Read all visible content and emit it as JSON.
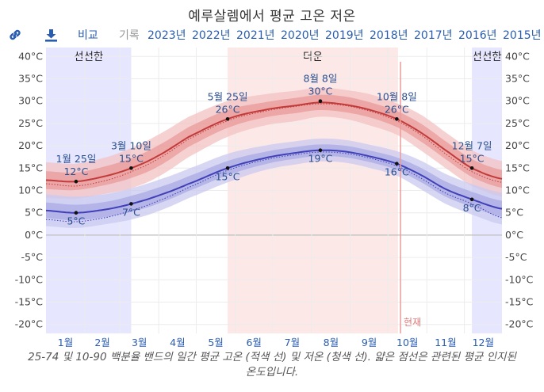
{
  "title": "예루살렘에서 평균 고온 저온",
  "toolbar": {
    "link_icon": "link-icon",
    "download_icon": "download-icon",
    "compare_label": "비교",
    "history_label": "기록",
    "years": [
      "2023년",
      "2022년",
      "2021년",
      "2020년",
      "2019년",
      "2018년",
      "2017년",
      "2016년",
      "2015년"
    ],
    "link_color": "#2a5db0"
  },
  "caption": "25-74 및 10-90 백분율 밴드의 일간 평균 고온 (적색 선) 및 저온 (청색 선). 얇은 점선은 관련된 평균 인지된 온도입니다.",
  "chart_data": {
    "type": "line",
    "title": "예루살렘에서 평균 고온 저온",
    "x_unit": "day_of_year",
    "xlim": [
      1,
      365
    ],
    "ylim": [
      -22,
      42
    ],
    "y_ticks": [
      -20,
      -15,
      -10,
      -5,
      0,
      5,
      10,
      15,
      20,
      25,
      30,
      35,
      40
    ],
    "y_tick_labels": [
      "-20°C",
      "-15°C",
      "-10°C",
      "-5°C",
      "0°C",
      "5°C",
      "10°C",
      "15°C",
      "20°C",
      "25°C",
      "30°C",
      "35°C",
      "40°C"
    ],
    "months": [
      "1월",
      "2월",
      "3월",
      "4월",
      "5월",
      "6월",
      "7월",
      "8월",
      "9월",
      "10월",
      "11월",
      "12월"
    ],
    "seasons": [
      {
        "label": "선선한",
        "start_day": 1,
        "end_day": 69,
        "color": "#e6e6ff"
      },
      {
        "label": "더운",
        "start_day": 146,
        "end_day": 282,
        "color": "#fde8e8"
      },
      {
        "label": "선선한",
        "start_day": 341,
        "end_day": 365,
        "color": "#e6e6ff"
      }
    ],
    "now": {
      "label": "현재",
      "day": 284,
      "color": "#ee9a9a"
    },
    "series": [
      {
        "name": "평균 고온",
        "color": "#c23b3b",
        "band_outer": "#f3c2c2",
        "band_inner": "#e99999",
        "days": [
          1,
          25,
          50,
          69,
          90,
          115,
          146,
          175,
          200,
          220,
          240,
          260,
          281,
          300,
          320,
          341,
          365
        ],
        "values": [
          12.3,
          12,
          13.3,
          15,
          17.7,
          22,
          26,
          28,
          29,
          29.7,
          29.2,
          28,
          26,
          23,
          19,
          15,
          12.6
        ],
        "p10": [
          8.3,
          8.2,
          9.3,
          10.5,
          13,
          17.5,
          22,
          24.5,
          25.5,
          26.5,
          26,
          24.5,
          22.5,
          19,
          15,
          11,
          8.6
        ],
        "p25": [
          10.3,
          10.1,
          11.3,
          12.8,
          15.3,
          19.8,
          24,
          26.3,
          27.3,
          28,
          27.5,
          26.3,
          24.2,
          21,
          17,
          13,
          10.6
        ],
        "p75": [
          14.3,
          14,
          15.5,
          17.2,
          20,
          24.2,
          28,
          29.7,
          30.7,
          31.4,
          31,
          29.7,
          27.8,
          25,
          21,
          17,
          14.6
        ],
        "p90": [
          16.3,
          16,
          17.5,
          19.5,
          22.4,
          26.5,
          30,
          31.5,
          32.3,
          33,
          32.5,
          31.5,
          29.5,
          27,
          23,
          19,
          16.6
        ],
        "feels": [
          11.5,
          11,
          12.3,
          14.2,
          17,
          21.5,
          25.6,
          27.7,
          28.8,
          29.4,
          29,
          27.7,
          25.6,
          22.5,
          18.2,
          14.2,
          11.8
        ]
      },
      {
        "name": "평균 저온",
        "color": "#4040b8",
        "band_outer": "#c9c9f0",
        "band_inner": "#a9a9e4",
        "days": [
          1,
          25,
          50,
          69,
          90,
          115,
          146,
          175,
          200,
          220,
          240,
          260,
          281,
          300,
          320,
          341,
          365
        ],
        "values": [
          5.5,
          5,
          5.8,
          7,
          8.8,
          11.5,
          15,
          17.2,
          18.4,
          19,
          18.7,
          17.6,
          16,
          13.5,
          10.3,
          8,
          5.9
        ],
        "p10": [
          2,
          1.6,
          2.5,
          3.5,
          5.3,
          8.3,
          11.8,
          14.5,
          15.8,
          16.5,
          16.2,
          15,
          13.3,
          10.3,
          7,
          4.6,
          2.4
        ],
        "p25": [
          3.8,
          3.3,
          4.1,
          5.2,
          7,
          9.9,
          13.4,
          15.8,
          17.1,
          17.7,
          17.4,
          16.3,
          14.6,
          11.9,
          8.6,
          6.3,
          4.1
        ],
        "p75": [
          7.3,
          6.8,
          7.5,
          8.8,
          10.6,
          13.2,
          16.6,
          18.6,
          19.7,
          20.3,
          20,
          18.9,
          17.4,
          15.1,
          12,
          9.7,
          7.7
        ],
        "p90": [
          9.1,
          8.6,
          9.2,
          10.5,
          12.3,
          14.9,
          18.2,
          20,
          21,
          21.6,
          21.3,
          20.2,
          18.8,
          16.7,
          13.7,
          11.4,
          9.5
        ],
        "feels": [
          3.5,
          3,
          4,
          5.5,
          7.6,
          10.7,
          14.5,
          16.8,
          18,
          18.6,
          18.3,
          17.2,
          15.5,
          12.8,
          9.4,
          7,
          3.9
        ]
      }
    ],
    "annotations": [
      {
        "series": 0,
        "day": 25,
        "value": 12,
        "date": "1월 25일",
        "temp": "12°C",
        "pos": "above"
      },
      {
        "series": 0,
        "day": 69,
        "value": 15,
        "date": "3월 10일",
        "temp": "15°C",
        "pos": "above"
      },
      {
        "series": 0,
        "day": 146,
        "value": 26,
        "date": "5월 25일",
        "temp": "26°C",
        "pos": "above"
      },
      {
        "series": 0,
        "day": 220,
        "value": 30,
        "date": "8월 8일",
        "temp": "30°C",
        "pos": "above"
      },
      {
        "series": 0,
        "day": 281,
        "value": 26,
        "date": "10월 8일",
        "temp": "26°C",
        "pos": "above"
      },
      {
        "series": 0,
        "day": 341,
        "value": 15,
        "date": "12월 7일",
        "temp": "15°C",
        "pos": "above"
      },
      {
        "series": 1,
        "day": 25,
        "value": 5,
        "temp": "5°C",
        "pos": "below"
      },
      {
        "series": 1,
        "day": 69,
        "value": 7,
        "temp": "7°C",
        "pos": "below"
      },
      {
        "series": 1,
        "day": 146,
        "value": 15,
        "temp": "15°C",
        "pos": "below"
      },
      {
        "series": 1,
        "day": 220,
        "value": 19,
        "temp": "19°C",
        "pos": "below"
      },
      {
        "series": 1,
        "day": 281,
        "value": 16,
        "temp": "16°C",
        "pos": "below"
      },
      {
        "series": 1,
        "day": 341,
        "value": 8,
        "temp": "8°C",
        "pos": "below"
      }
    ]
  }
}
